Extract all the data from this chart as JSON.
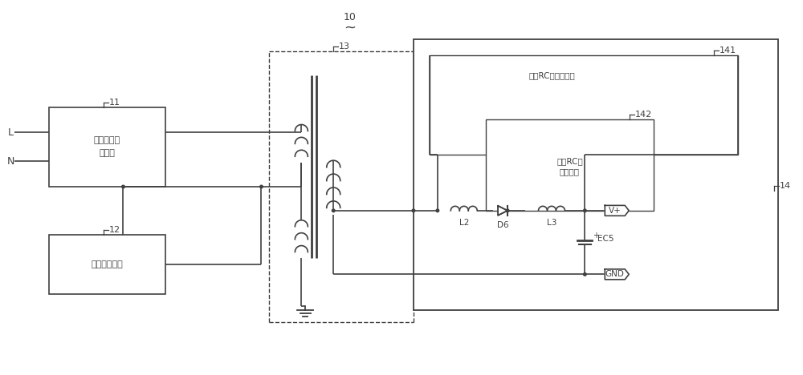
{
  "bg_color": "#ffffff",
  "line_color": "#404040",
  "fig_width": 10.0,
  "fig_height": 4.68,
  "dpi": 100,
  "labels": {
    "L_label": "L",
    "N_label": "N",
    "block11_text": "輸入整流濾\n波電路",
    "block12_text": "電源管理電路",
    "label11": "11",
    "label12": "12",
    "label13": "13",
    "label14": "14",
    "label141": "141",
    "label142": "142",
    "label10": "10",
    "tilde": "~",
    "rc1_text": "第一RC濾波子電路",
    "rc2_line1": "第二RC濾",
    "rc2_line2": "波子電路",
    "L2_text": "L2",
    "L3_text": "L3",
    "D6_text": "D6",
    "EC5_text": "EC5",
    "Vplus_text": "V+",
    "GND_text": "GND"
  }
}
